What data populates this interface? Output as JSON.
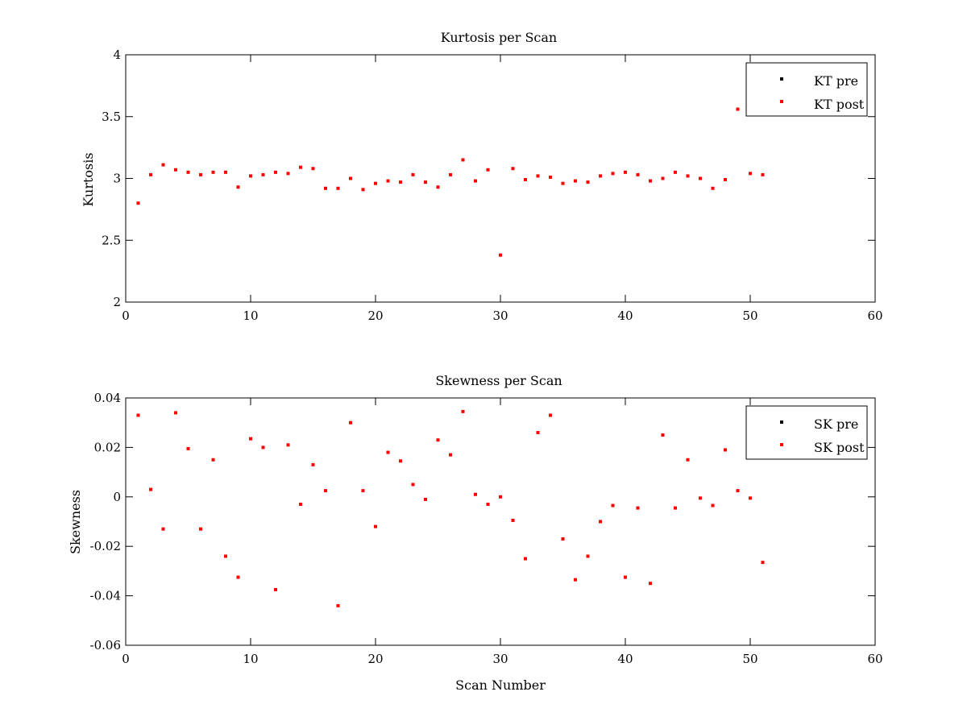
{
  "chart_data": [
    {
      "type": "scatter",
      "title": "Kurtosis per Scan",
      "xlabel": "",
      "ylabel": "Kurtosis",
      "xlim": [
        0,
        60
      ],
      "ylim": [
        2,
        4
      ],
      "xticks": [
        0,
        10,
        20,
        30,
        40,
        50,
        60
      ],
      "yticks": [
        2,
        2.5,
        3,
        3.5,
        4
      ],
      "xtick_labels": [
        "0",
        "10",
        "20",
        "30",
        "40",
        "50",
        "60"
      ],
      "ytick_labels": [
        "2",
        "2.5",
        "3",
        "3.5",
        "4"
      ],
      "grid": false,
      "legend_position": "top-right",
      "series": [
        {
          "name": "KT pre",
          "color": "#000000",
          "x": [],
          "y": []
        },
        {
          "name": "KT post",
          "color": "#ff0000",
          "x": [
            1,
            2,
            3,
            4,
            5,
            6,
            7,
            8,
            9,
            10,
            11,
            12,
            13,
            14,
            15,
            16,
            17,
            18,
            19,
            20,
            21,
            22,
            23,
            24,
            25,
            26,
            27,
            28,
            29,
            30,
            31,
            32,
            33,
            34,
            35,
            36,
            37,
            38,
            39,
            40,
            41,
            42,
            43,
            44,
            45,
            46,
            47,
            48,
            49,
            50,
            51
          ],
          "y": [
            2.8,
            3.03,
            3.11,
            3.07,
            3.05,
            3.03,
            3.05,
            3.05,
            2.93,
            3.02,
            3.03,
            3.05,
            3.04,
            3.09,
            3.08,
            2.92,
            2.92,
            3.0,
            2.91,
            2.96,
            2.98,
            2.97,
            3.03,
            2.97,
            2.93,
            3.03,
            3.15,
            2.98,
            3.07,
            2.38,
            3.08,
            2.99,
            3.02,
            3.01,
            2.96,
            2.98,
            2.97,
            3.02,
            3.04,
            3.05,
            3.03,
            2.98,
            3.0,
            3.05,
            3.02,
            3.0,
            2.92,
            2.99,
            3.56,
            3.04,
            3.03
          ]
        }
      ]
    },
    {
      "type": "scatter",
      "title": "Skewness per Scan",
      "xlabel": "Scan Number",
      "ylabel": "Skewness",
      "xlim": [
        0,
        60
      ],
      "ylim": [
        -0.06,
        0.04
      ],
      "xticks": [
        0,
        10,
        20,
        30,
        40,
        50,
        60
      ],
      "yticks": [
        -0.06,
        -0.04,
        -0.02,
        0,
        0.02,
        0.04
      ],
      "xtick_labels": [
        "0",
        "10",
        "20",
        "30",
        "40",
        "50",
        "60"
      ],
      "ytick_labels": [
        "-0.06",
        "-0.04",
        "-0.02",
        "0",
        "0.02",
        "0.04"
      ],
      "grid": false,
      "legend_position": "top-right",
      "series": [
        {
          "name": "SK pre",
          "color": "#000000",
          "x": [],
          "y": []
        },
        {
          "name": "SK post",
          "color": "#ff0000",
          "x": [
            1,
            2,
            3,
            4,
            5,
            6,
            7,
            8,
            9,
            10,
            11,
            12,
            13,
            14,
            15,
            16,
            17,
            18,
            19,
            20,
            21,
            22,
            23,
            24,
            25,
            26,
            27,
            28,
            29,
            30,
            31,
            32,
            33,
            34,
            35,
            36,
            37,
            38,
            39,
            40,
            41,
            42,
            43,
            44,
            45,
            46,
            47,
            48,
            49,
            50,
            51
          ],
          "y": [
            0.033,
            0.003,
            -0.013,
            0.034,
            0.0195,
            -0.013,
            0.015,
            -0.024,
            -0.0325,
            0.0235,
            0.02,
            -0.0375,
            0.021,
            -0.003,
            0.013,
            0.0025,
            -0.044,
            0.03,
            0.0025,
            -0.012,
            0.018,
            0.0145,
            0.005,
            -0.001,
            0.023,
            0.017,
            0.0345,
            0.001,
            -0.003,
            0.0,
            -0.0095,
            -0.025,
            0.026,
            0.033,
            -0.017,
            -0.0335,
            -0.024,
            -0.01,
            -0.0035,
            -0.0325,
            -0.0045,
            -0.035,
            0.025,
            -0.0045,
            0.015,
            -0.0005,
            -0.0035,
            0.019,
            0.0025,
            -0.0005,
            -0.0265
          ]
        }
      ]
    }
  ]
}
